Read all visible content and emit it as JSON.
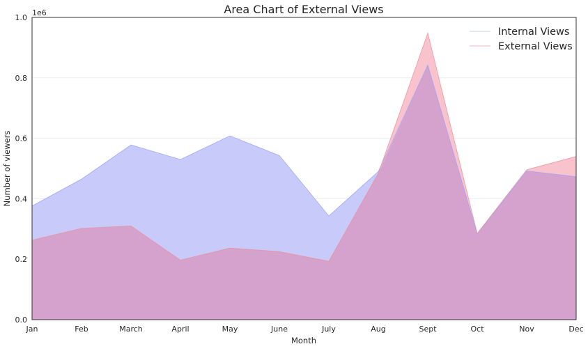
{
  "chart_data": {
    "type": "area",
    "title": "Area Chart of External Views",
    "xlabel": "Month",
    "ylabel": "Number of viewers",
    "y_offset_label": "1e6",
    "categories": [
      "Jan",
      "Feb",
      "March",
      "April",
      "May",
      "June",
      "July",
      "Aug",
      "Sept",
      "Oct",
      "Nov",
      "Dec"
    ],
    "ylim": [
      0,
      1.0
    ],
    "yticks": [
      "0.0",
      "0.2",
      "0.4",
      "0.6",
      "0.8",
      "1.0"
    ],
    "grid": true,
    "legend_position": "top-right",
    "series": [
      {
        "name": "Internal Views",
        "color": "#9aa0ff",
        "fill": "#c8caf9",
        "values": [
          376000,
          465000,
          578000,
          530000,
          608000,
          543000,
          343000,
          490000,
          842000,
          283000,
          492000,
          473000
        ]
      },
      {
        "name": "External Views",
        "color": "#e8909a",
        "fill": "#f8c3cc",
        "values": [
          263000,
          302000,
          310000,
          197000,
          237000,
          225000,
          193000,
          484000,
          948000,
          285000,
          496000,
          540000
        ]
      }
    ],
    "overlap_color": "#d4a2cc"
  }
}
